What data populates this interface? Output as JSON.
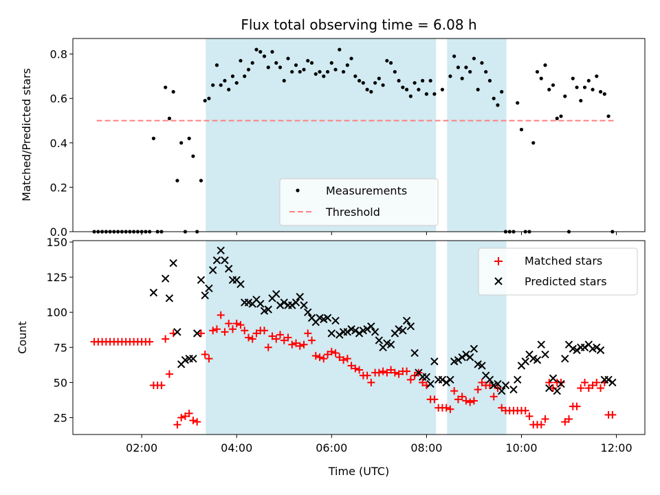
{
  "colors": {
    "shade": "#add8e6",
    "measurement": "#000000",
    "threshold": "#ff7f7f",
    "matched": "#ff0000",
    "predicted": "#000000"
  },
  "chart_data": [
    {
      "type": "scatter",
      "title": "Flux total observing time = 6.08 h",
      "xlabel": "",
      "ylabel": "Matched/Predicted stars",
      "xlim": [
        "00:33",
        "12:36"
      ],
      "ylim": [
        0,
        0.87
      ],
      "y_ticks": [
        "0.0",
        "0.2",
        "0.4",
        "0.6",
        "0.8"
      ],
      "y_tick_values": [
        0,
        0.2,
        0.4,
        0.6,
        0.8
      ],
      "x_tick_values": [
        "02:00",
        "04:00",
        "06:00",
        "08:00",
        "10:00",
        "12:00"
      ],
      "shaded_intervals": [
        [
          "03:21",
          "08:12"
        ],
        [
          "08:26",
          "09:41"
        ]
      ],
      "legend": {
        "position": "lower-center",
        "entries": [
          "Measurements",
          "Threshold"
        ]
      },
      "threshold": {
        "value": 0.5,
        "x_start": "01:03",
        "x_end": "11:57"
      },
      "series": [
        {
          "name": "Measurements",
          "marker": "dot",
          "x": [
            "01:00",
            "01:05",
            "01:10",
            "01:15",
            "01:20",
            "01:25",
            "01:30",
            "01:35",
            "01:40",
            "01:45",
            "01:50",
            "01:55",
            "02:00",
            "02:05",
            "02:10",
            "02:15",
            "02:20",
            "02:25",
            "02:30",
            "02:35",
            "02:40",
            "02:45",
            "02:50",
            "02:55",
            "03:00",
            "03:05",
            "03:10",
            "03:15",
            "03:20",
            "03:25",
            "03:30",
            "03:35",
            "03:40",
            "03:45",
            "03:50",
            "03:55",
            "04:00",
            "04:05",
            "04:10",
            "04:15",
            "04:20",
            "04:25",
            "04:30",
            "04:35",
            "04:40",
            "04:45",
            "04:50",
            "04:55",
            "05:00",
            "05:05",
            "05:10",
            "05:15",
            "05:20",
            "05:25",
            "05:30",
            "05:35",
            "05:40",
            "05:45",
            "05:50",
            "05:55",
            "06:00",
            "06:05",
            "06:10",
            "06:15",
            "06:20",
            "06:25",
            "06:30",
            "06:35",
            "06:40",
            "06:45",
            "06:50",
            "06:55",
            "07:00",
            "07:05",
            "07:10",
            "07:15",
            "07:20",
            "07:25",
            "07:30",
            "07:35",
            "07:40",
            "07:45",
            "07:50",
            "07:55",
            "08:00",
            "08:05",
            "08:10",
            "08:20",
            "08:30",
            "08:35",
            "08:40",
            "08:45",
            "08:50",
            "08:55",
            "09:00",
            "09:05",
            "09:10",
            "09:15",
            "09:20",
            "09:25",
            "09:30",
            "09:35",
            "09:40",
            "09:45",
            "09:50",
            "09:55",
            "10:00",
            "10:05",
            "10:10",
            "10:15",
            "10:20",
            "10:25",
            "10:30",
            "10:35",
            "10:40",
            "10:45",
            "10:50",
            "10:55",
            "11:00",
            "11:05",
            "11:10",
            "11:15",
            "11:20",
            "11:25",
            "11:30",
            "11:35",
            "11:40",
            "11:45",
            "11:50",
            "11:55"
          ],
          "y": [
            0,
            0,
            0,
            0,
            0,
            0,
            0,
            0,
            0,
            0,
            0,
            0,
            0,
            0,
            0,
            0.42,
            0,
            0,
            0.65,
            0.51,
            0.63,
            0.23,
            0.4,
            0,
            0.42,
            0.34,
            0,
            0.23,
            0.59,
            0.6,
            0.66,
            0.75,
            0.66,
            0.68,
            0.64,
            0.7,
            0.67,
            0.77,
            0.7,
            0.73,
            0.76,
            0.82,
            0.81,
            0.79,
            0.74,
            0.81,
            0.76,
            0.74,
            0.68,
            0.78,
            0.72,
            0.75,
            0.72,
            0.73,
            0.77,
            0.76,
            0.71,
            0.72,
            0.7,
            0.72,
            0.76,
            0.73,
            0.82,
            0.72,
            0.75,
            0.78,
            0.7,
            0.68,
            0.67,
            0.64,
            0.63,
            0.67,
            0.69,
            0.66,
            0.77,
            0.76,
            0.72,
            0.68,
            0.65,
            0.64,
            0.61,
            0.67,
            0.64,
            0.68,
            0.62,
            0.68,
            0.62,
            0.64,
            0.7,
            0.79,
            0.74,
            0.69,
            0.74,
            0.72,
            0.78,
            0.64,
            0.76,
            0.72,
            0.68,
            0.6,
            0.57,
            0.63,
            0,
            0,
            0,
            0.58,
            0.46,
            0,
            0,
            0.4,
            0.72,
            0.69,
            0.75,
            0.64,
            0.66,
            0.51,
            0.52,
            0.61,
            0,
            0.69,
            0.65,
            0.59,
            0.65,
            0.68,
            0.64,
            0.7,
            0.63,
            0.62,
            0.52,
            0
          ]
        }
      ]
    },
    {
      "type": "scatter",
      "title": "",
      "xlabel": "Time (UTC)",
      "ylabel": "Count",
      "xlim": [
        "00:33",
        "12:36"
      ],
      "ylim": [
        13,
        151
      ],
      "y_ticks": [
        "25",
        "50",
        "75",
        "100",
        "125",
        "150"
      ],
      "y_tick_values": [
        25,
        50,
        75,
        100,
        125,
        150
      ],
      "x_ticks": [
        "02:00",
        "04:00",
        "06:00",
        "08:00",
        "10:00",
        "12:00"
      ],
      "x_tick_values": [
        "02:00",
        "04:00",
        "06:00",
        "08:00",
        "10:00",
        "12:00"
      ],
      "shaded_intervals": [
        [
          "03:21",
          "08:12"
        ],
        [
          "08:26",
          "09:41"
        ]
      ],
      "legend": {
        "position": "upper-right",
        "entries": [
          "Matched stars",
          "Predicted stars"
        ]
      },
      "series": [
        {
          "name": "Matched stars",
          "marker": "plus",
          "x": [
            "01:00",
            "01:05",
            "01:10",
            "01:15",
            "01:20",
            "01:25",
            "01:30",
            "01:35",
            "01:40",
            "01:45",
            "01:50",
            "01:55",
            "02:00",
            "02:05",
            "02:10",
            "02:15",
            "02:20",
            "02:25",
            "02:30",
            "02:35",
            "02:40",
            "02:45",
            "02:50",
            "02:55",
            "03:00",
            "03:05",
            "03:10",
            "03:15",
            "03:20",
            "03:25",
            "03:30",
            "03:35",
            "03:40",
            "03:45",
            "03:50",
            "03:55",
            "04:00",
            "04:05",
            "04:10",
            "04:15",
            "04:20",
            "04:25",
            "04:30",
            "04:35",
            "04:40",
            "04:45",
            "04:50",
            "04:55",
            "05:00",
            "05:05",
            "05:10",
            "05:15",
            "05:20",
            "05:25",
            "05:30",
            "05:35",
            "05:40",
            "05:45",
            "05:50",
            "05:55",
            "06:00",
            "06:05",
            "06:10",
            "06:15",
            "06:20",
            "06:25",
            "06:30",
            "06:35",
            "06:40",
            "06:45",
            "06:50",
            "06:55",
            "07:00",
            "07:05",
            "07:10",
            "07:15",
            "07:20",
            "07:25",
            "07:30",
            "07:35",
            "07:40",
            "07:45",
            "07:50",
            "07:55",
            "08:00",
            "08:05",
            "08:10",
            "08:15",
            "08:20",
            "08:25",
            "08:30",
            "08:35",
            "08:40",
            "08:45",
            "08:50",
            "08:55",
            "09:00",
            "09:05",
            "09:10",
            "09:15",
            "09:20",
            "09:25",
            "09:30",
            "09:35",
            "09:40",
            "09:45",
            "09:50",
            "09:55",
            "10:00",
            "10:05",
            "10:10",
            "10:15",
            "10:20",
            "10:25",
            "10:30",
            "10:35",
            "10:40",
            "10:45",
            "10:50",
            "10:55",
            "11:00",
            "11:05",
            "11:10",
            "11:15",
            "11:20",
            "11:25",
            "11:30",
            "11:35",
            "11:40",
            "11:45",
            "11:50",
            "11:55"
          ],
          "y": [
            79,
            79,
            79,
            79,
            79,
            79,
            79,
            79,
            79,
            79,
            79,
            79,
            79,
            79,
            79,
            48,
            48,
            48,
            81,
            56,
            85,
            20,
            25,
            26,
            28,
            23,
            22,
            85,
            70,
            67,
            87,
            88,
            98,
            86,
            92,
            88,
            92,
            91,
            87,
            82,
            81,
            85,
            87,
            87,
            75,
            83,
            81,
            84,
            80,
            82,
            77,
            78,
            76,
            77,
            85,
            80,
            69,
            68,
            67,
            70,
            72,
            71,
            68,
            66,
            67,
            62,
            60,
            59,
            55,
            55,
            50,
            57,
            57,
            58,
            57,
            59,
            57,
            56,
            58,
            58,
            52,
            55,
            57,
            50,
            48,
            38,
            38,
            32,
            32,
            32,
            31,
            44,
            38,
            40,
            37,
            36,
            37,
            45,
            50,
            48,
            48,
            40,
            46,
            32,
            30,
            30,
            30,
            30,
            30,
            30,
            26,
            20,
            20,
            20,
            24,
            50,
            46,
            50,
            50,
            22,
            24,
            33,
            33,
            46,
            50,
            46,
            48,
            50,
            46,
            50,
            27,
            27
          ]
        },
        {
          "name": "Predicted stars",
          "marker": "x",
          "x": [
            "02:15",
            "02:30",
            "02:35",
            "02:40",
            "02:45",
            "02:50",
            "02:55",
            "03:00",
            "03:05",
            "03:10",
            "03:15",
            "03:20",
            "03:25",
            "03:30",
            "03:35",
            "03:40",
            "03:45",
            "03:50",
            "03:55",
            "04:00",
            "04:05",
            "04:10",
            "04:15",
            "04:20",
            "04:25",
            "04:30",
            "04:35",
            "04:40",
            "04:45",
            "04:50",
            "04:55",
            "05:00",
            "05:05",
            "05:10",
            "05:15",
            "05:20",
            "05:25",
            "05:30",
            "05:35",
            "05:40",
            "05:45",
            "05:50",
            "05:55",
            "06:00",
            "06:05",
            "06:10",
            "06:15",
            "06:20",
            "06:25",
            "06:30",
            "06:35",
            "06:40",
            "06:45",
            "06:50",
            "06:55",
            "07:00",
            "07:05",
            "07:10",
            "07:15",
            "07:20",
            "07:25",
            "07:30",
            "07:35",
            "07:40",
            "07:45",
            "07:50",
            "07:55",
            "08:00",
            "08:05",
            "08:10",
            "08:15",
            "08:20",
            "08:25",
            "08:30",
            "08:35",
            "08:40",
            "08:45",
            "08:50",
            "08:55",
            "09:00",
            "09:05",
            "09:10",
            "09:15",
            "09:20",
            "09:25",
            "09:30",
            "09:35",
            "09:40",
            "09:50",
            "09:55",
            "10:00",
            "10:05",
            "10:10",
            "10:15",
            "10:20",
            "10:25",
            "10:30",
            "10:35",
            "10:40",
            "10:45",
            "10:50",
            "10:55",
            "11:00",
            "11:05",
            "11:10",
            "11:15",
            "11:20",
            "11:25",
            "11:30",
            "11:35",
            "11:40",
            "11:45",
            "11:50",
            "11:55"
          ],
          "y": [
            114,
            124,
            110,
            135,
            86,
            63,
            66,
            67,
            67,
            85,
            123,
            112,
            117,
            130,
            137,
            144,
            137,
            131,
            123,
            123,
            120,
            107,
            107,
            106,
            109,
            106,
            101,
            102,
            110,
            113,
            105,
            107,
            105,
            105,
            107,
            111,
            105,
            100,
            96,
            93,
            96,
            95,
            96,
            85,
            94,
            84,
            86,
            86,
            88,
            87,
            85,
            87,
            88,
            90,
            86,
            80,
            75,
            78,
            77,
            85,
            88,
            87,
            94,
            90,
            71,
            57,
            54,
            54,
            49,
            65,
            52,
            52,
            50,
            52,
            65,
            66,
            68,
            70,
            68,
            74,
            63,
            62,
            55,
            52,
            48,
            49,
            44,
            48,
            45,
            52,
            62,
            65,
            70,
            67,
            66,
            77,
            70,
            46,
            53,
            44,
            49,
            67,
            77,
            74,
            73,
            75,
            75,
            77,
            74,
            75,
            73,
            52,
            52,
            50
          ]
        }
      ]
    }
  ]
}
